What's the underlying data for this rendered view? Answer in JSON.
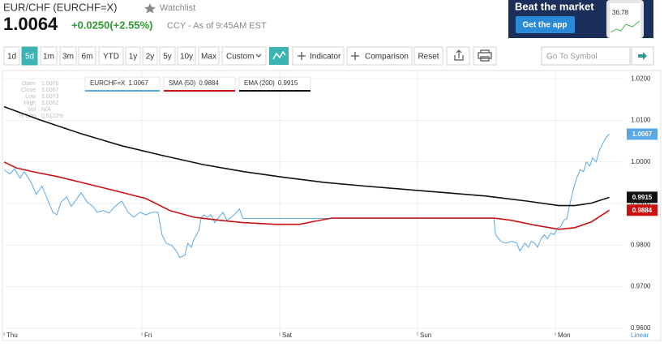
{
  "header": {
    "name": "EUR/CHF (EURCHF=X)",
    "watchlist": "Watchlist",
    "price": "1.0064",
    "change": "+0.0250(+2.55%)",
    "meta": "CCY - As of 9:45AM EST"
  },
  "ad": {
    "title": "Beat the market",
    "button": "Get the app",
    "phone_value": "36.78"
  },
  "toolbar": {
    "ranges": [
      "1d",
      "5d",
      "1m",
      "3m",
      "6m",
      "YTD",
      "1y",
      "2y",
      "5y",
      "10y",
      "Max"
    ],
    "active_index": 1,
    "custom": "Custom",
    "indicator": "Indicator",
    "comparison": "Comparison",
    "reset": "Reset",
    "search_placeholder": "Go To Symbol"
  },
  "ohlc": {
    "labels": [
      "Open",
      "Close",
      "Low",
      "High",
      "Vol",
      "% Chg"
    ],
    "values": [
      "1.0070",
      "1.0067",
      "1.0073",
      "1.0062",
      "N/A",
      "0.5122%"
    ]
  },
  "chart_data": {
    "type": "line",
    "scale_label": "Linear",
    "legend": "top-left",
    "grid": true,
    "xlim": [
      0,
      108
    ],
    "xticks": [
      {
        "value": 0,
        "label": "Thu"
      },
      {
        "value": 24,
        "label": "Fri"
      },
      {
        "value": 48,
        "label": "Sat"
      },
      {
        "value": 72,
        "label": "Sun"
      },
      {
        "value": 96,
        "label": "Mon"
      }
    ],
    "ylim": [
      0.959,
      1.0218
    ],
    "yticks": [
      {
        "value": 0.96,
        "label": "0.9600"
      },
      {
        "value": 0.97,
        "label": "0.9700"
      },
      {
        "value": 0.98,
        "label": "0.9800"
      },
      {
        "value": 0.99,
        "label": "0.9900"
      },
      {
        "value": 1.0,
        "label": "1.0000"
      },
      {
        "value": 1.01,
        "label": "1.0100"
      },
      {
        "value": 1.02,
        "label": "1.0200"
      }
    ],
    "series": [
      {
        "name": "EURCHF=X",
        "color": "#5aa9e6",
        "x": [
          0,
          1.0,
          1.8,
          2.8,
          3.5,
          4.7,
          5.6,
          6.6,
          7.5,
          8.5,
          9.2,
          9.9,
          10.9,
          11.7,
          12.7,
          13.4,
          14.5,
          15.5,
          16.2,
          17.3,
          18.3,
          19.3,
          20.5,
          21.6,
          22.6,
          23.6,
          24.7,
          25.8,
          26.8,
          27.5,
          28.2,
          29.2,
          30.0,
          30.6,
          31.5,
          32.0,
          32.6,
          33.1,
          33.9,
          34.3,
          34.8,
          35.4,
          36.0,
          36.7,
          37.4,
          38.1,
          38.8,
          39.6,
          40.5,
          41.0,
          41.6,
          85.3,
          85.6,
          86.5,
          87.4,
          88.4,
          89.3,
          89.8,
          90.7,
          91.3,
          91.8,
          92.4,
          92.9,
          93.5,
          94.1,
          94.6,
          95.2,
          95.8,
          96.3,
          96.9,
          97.5,
          98.0,
          98.6,
          99.2,
          99.7,
          100.3,
          100.9,
          101.4,
          102.0,
          102.5,
          103.1,
          103.7,
          104.2,
          104.8,
          105.4
        ],
        "values": [
          0.9981,
          0.9971,
          0.9984,
          0.9961,
          0.9977,
          0.9951,
          0.9922,
          0.9942,
          0.9912,
          0.9879,
          0.9873,
          0.9903,
          0.9916,
          0.9893,
          0.9912,
          0.9926,
          0.9903,
          0.9893,
          0.9879,
          0.9883,
          0.9877,
          0.9893,
          0.9906,
          0.9879,
          0.9867,
          0.9879,
          0.9873,
          0.9879,
          0.9879,
          0.9825,
          0.9805,
          0.9799,
          0.9786,
          0.977,
          0.9776,
          0.9805,
          0.9795,
          0.9815,
          0.9834,
          0.9864,
          0.9873,
          0.9867,
          0.9873,
          0.9854,
          0.9867,
          0.9879,
          0.986,
          0.9867,
          0.9879,
          0.9887,
          0.9864,
          0.9864,
          0.9825,
          0.9809,
          0.9805,
          0.9809,
          0.9805,
          0.9786,
          0.9805,
          0.9795,
          0.9809,
          0.9805,
          0.9795,
          0.9815,
          0.9825,
          0.9815,
          0.9829,
          0.9825,
          0.984,
          0.9844,
          0.986,
          0.9864,
          0.9903,
          0.9938,
          0.9961,
          0.9981,
          0.9977,
          1.0,
          0.999,
          1.001,
          1.0,
          1.0029,
          1.0043,
          1.0058,
          1.0067
        ]
      },
      {
        "name": "SMA (50)",
        "color": "#cc1111",
        "x": [
          0,
          2.1,
          4.9,
          9.2,
          13.4,
          19.0,
          24.7,
          28.9,
          33.1,
          37.4,
          41.6,
          47.2,
          51.5,
          54.3,
          57.1,
          62.8,
          69.8,
          78.3,
          85.3,
          88.2,
          92.4,
          96.6,
          99.4,
          102.3,
          105.4
        ],
        "values": [
          1.0,
          0.9986,
          0.9977,
          0.9965,
          0.9951,
          0.9932,
          0.9912,
          0.9883,
          0.9867,
          0.986,
          0.9854,
          0.985,
          0.985,
          0.9858,
          0.9865,
          0.9865,
          0.9865,
          0.9865,
          0.9865,
          0.986,
          0.9848,
          0.9838,
          0.9842,
          0.9856,
          0.9884
        ]
      },
      {
        "name": "EMA (200)",
        "color": "#111111",
        "x": [
          0,
          6.3,
          13.4,
          20.5,
          27.5,
          34.6,
          41.6,
          48.7,
          55.7,
          62.8,
          69.8,
          76.9,
          83.9,
          91.0,
          96.6,
          99.4,
          102.3,
          105.4
        ],
        "values": [
          1.0133,
          1.0101,
          1.0068,
          1.0039,
          1.0016,
          0.9994,
          0.9977,
          0.9963,
          0.9951,
          0.9942,
          0.9934,
          0.9926,
          0.9918,
          0.9906,
          0.9895,
          0.9895,
          0.9901,
          0.9915
        ]
      }
    ]
  }
}
